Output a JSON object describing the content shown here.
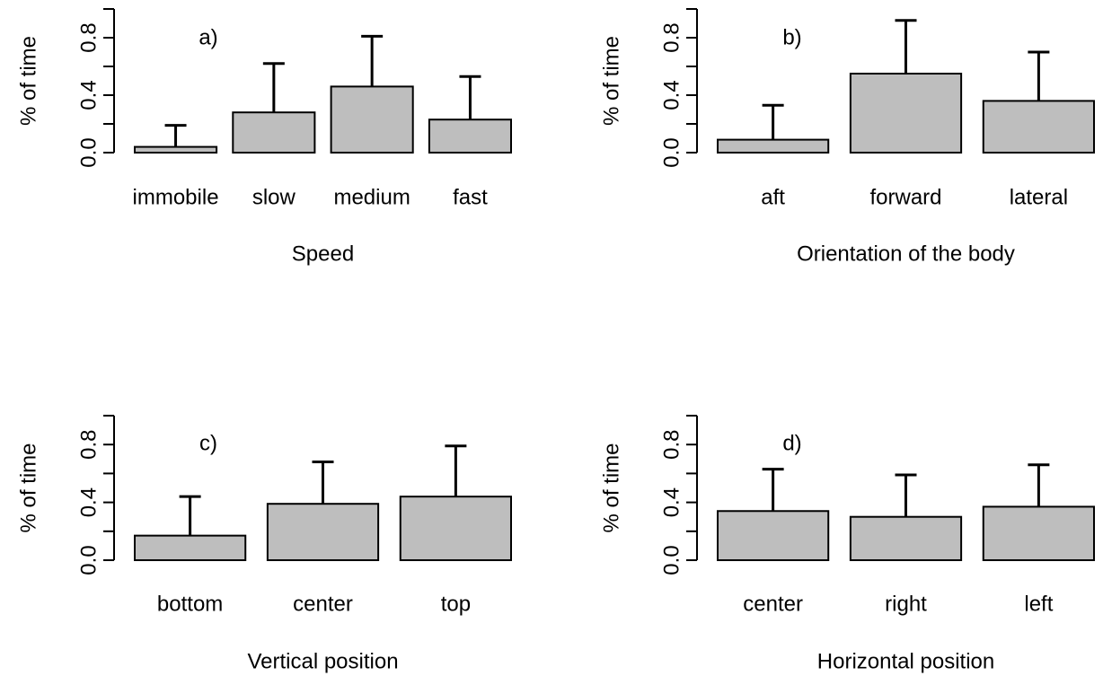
{
  "chart_data": [
    {
      "type": "bar",
      "annotation": "a)",
      "xlabel": "Speed",
      "ylabel": "% of time",
      "ylim": [
        0,
        1.0
      ],
      "yticks": [
        "0.0",
        "0.4",
        "0.8"
      ],
      "categories": [
        "immobile",
        "slow",
        "medium",
        "fast"
      ],
      "values": [
        0.04,
        0.28,
        0.46,
        0.23
      ],
      "error_upper": [
        0.19,
        0.62,
        0.81,
        0.53
      ],
      "bar_color": "#bebebe"
    },
    {
      "type": "bar",
      "annotation": "b)",
      "xlabel": "Orientation of the body",
      "ylabel": "% of time",
      "ylim": [
        0,
        1.0
      ],
      "yticks": [
        "0.0",
        "0.4",
        "0.8"
      ],
      "categories": [
        "aft",
        "forward",
        "lateral"
      ],
      "values": [
        0.09,
        0.55,
        0.36
      ],
      "error_upper": [
        0.33,
        0.92,
        0.7
      ],
      "bar_color": "#bebebe"
    },
    {
      "type": "bar",
      "annotation": "c)",
      "xlabel": "Vertical position",
      "ylabel": "% of time",
      "ylim": [
        0,
        1.0
      ],
      "yticks": [
        "0.0",
        "0.4",
        "0.8"
      ],
      "categories": [
        "bottom",
        "center",
        "top"
      ],
      "values": [
        0.17,
        0.39,
        0.44
      ],
      "error_upper": [
        0.44,
        0.68,
        0.79
      ],
      "bar_color": "#bebebe"
    },
    {
      "type": "bar",
      "annotation": "d)",
      "xlabel": "Horizontal position",
      "ylabel": "% of time",
      "ylim": [
        0,
        1.0
      ],
      "yticks": [
        "0.0",
        "0.4",
        "0.8"
      ],
      "categories": [
        "center",
        "right",
        "left"
      ],
      "values": [
        0.34,
        0.3,
        0.37
      ],
      "error_upper": [
        0.63,
        0.59,
        0.66
      ],
      "bar_color": "#bebebe"
    }
  ]
}
